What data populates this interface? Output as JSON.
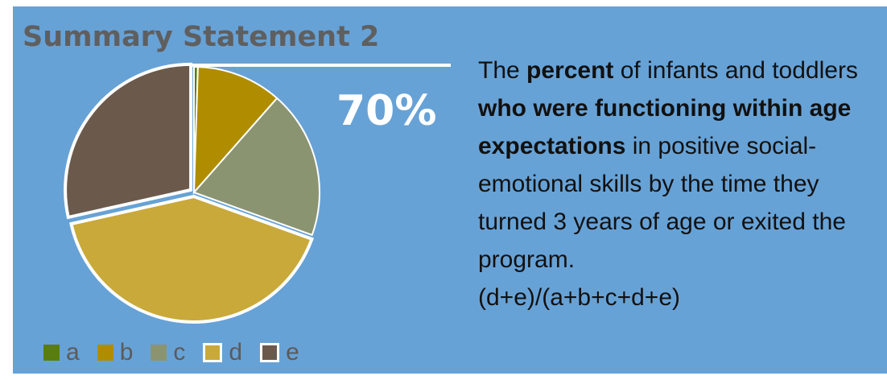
{
  "title": "Summary Statement 2",
  "highlight_value": "70%",
  "description": {
    "p1": "The ",
    "b1": "percent",
    "p2": " of infants and toddlers ",
    "b2": "who were functioning within age expectations",
    "p3": " in positive social-emotional skills by the time they turned 3 years of age or exited the program.",
    "formula": "(d+e)/(a+b+c+d+e)"
  },
  "chart_data": {
    "type": "pie",
    "title": "Summary Statement 2",
    "slices": [
      {
        "label": "a",
        "value": 0.5,
        "color": "#5a7d12"
      },
      {
        "label": "b",
        "value": 11,
        "color": "#b08d00"
      },
      {
        "label": "c",
        "value": 19,
        "color": "#8b9470"
      },
      {
        "label": "d",
        "value": 41,
        "color": "#c9a93a"
      },
      {
        "label": "e",
        "value": 28.5,
        "color": "#6b5a4b"
      }
    ],
    "highlighted_slices": [
      "d",
      "e"
    ],
    "highlight_value": "70%",
    "legend_position": "bottom"
  }
}
